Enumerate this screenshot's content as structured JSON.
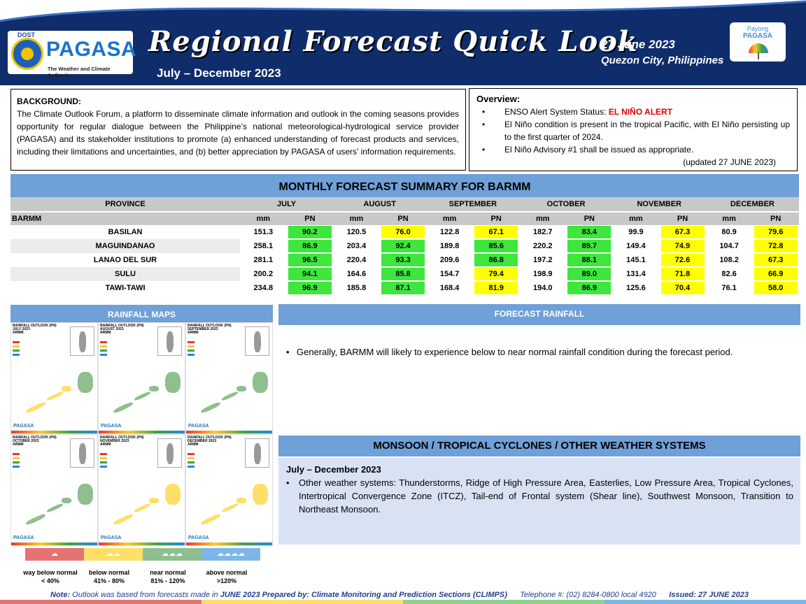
{
  "header": {
    "org_top": "DOST",
    "org_name": "PAGASA",
    "org_tagline": "The Weather and Climate Authority",
    "title": "Regional Forecast Quick Look",
    "period": "July – December 2023",
    "date": "27 June 2023",
    "place": "Quezon City, Philippines",
    "payong_line1": "Payong",
    "payong_line2": "PAGASA"
  },
  "background": {
    "heading": "BACKGROUND:",
    "text": "The Climate Outlook Forum, a platform to disseminate climate information and outlook in the coming seasons provides opportunity for regular dialogue between the Philippine’s national meteorological-hydrological service provider (PAGASA) and its stakeholder institutions to promote (a) enhanced understanding of forecast products and services, including their limitations and uncertainties, and (b) better appreciation by PAGASA of users’ information requirements."
  },
  "overview": {
    "heading": "Overview:",
    "item1_prefix": "ENSO Alert System Status: ",
    "item1_alert": "EL NIÑO ALERT",
    "item2": "El Niño condition is present in the tropical Pacific, with El Niño persisting up to the first quarter of 2024.",
    "item3": "El Niño Advisory #1 shall be issued as appropriate.",
    "updated": "(updated 27 JUNE 2023)"
  },
  "table": {
    "title": "MONTHLY FORECAST SUMMARY FOR BARMM",
    "province_header": "PROVINCE",
    "region": "BARMM",
    "months": [
      "JULY",
      "AUGUST",
      "SEPTEMBER",
      "OCTOBER",
      "NOVEMBER",
      "DECEMBER"
    ],
    "col_mm": "mm",
    "col_pn": "PN",
    "rows": [
      {
        "province": "BASILAN",
        "mm": [
          "151.3",
          "120.5",
          "122.8",
          "182.7",
          "99.9",
          "80.9"
        ],
        "pn": [
          "90.2",
          "76.0",
          "67.1",
          "83.4",
          "67.3",
          "79.6"
        ],
        "pn_color": [
          "#3ee63e",
          "#ffff00",
          "#ffff00",
          "#3ee63e",
          "#ffff00",
          "#ffff00"
        ]
      },
      {
        "province": "MAGUINDANAO",
        "mm": [
          "258.1",
          "203.4",
          "189.8",
          "220.2",
          "149.4",
          "104.7"
        ],
        "pn": [
          "86.9",
          "92.4",
          "85.6",
          "89.7",
          "74.9",
          "72.8"
        ],
        "pn_color": [
          "#3ee63e",
          "#3ee63e",
          "#3ee63e",
          "#3ee63e",
          "#ffff00",
          "#ffff00"
        ]
      },
      {
        "province": "LANAO DEL SUR",
        "mm": [
          "281.1",
          "220.4",
          "209.6",
          "197.2",
          "145.1",
          "108.2"
        ],
        "pn": [
          "96.5",
          "93.3",
          "86.8",
          "88.1",
          "72.6",
          "67.3"
        ],
        "pn_color": [
          "#3ee63e",
          "#3ee63e",
          "#3ee63e",
          "#3ee63e",
          "#ffff00",
          "#ffff00"
        ]
      },
      {
        "province": "SULU",
        "mm": [
          "200.2",
          "164.6",
          "154.7",
          "198.9",
          "131.4",
          "82.6"
        ],
        "pn": [
          "94.1",
          "85.8",
          "79.4",
          "89.0",
          "71.8",
          "66.9"
        ],
        "pn_color": [
          "#3ee63e",
          "#3ee63e",
          "#ffff00",
          "#3ee63e",
          "#ffff00",
          "#ffff00"
        ]
      },
      {
        "province": "TAWI-TAWI",
        "mm": [
          "234.8",
          "185.8",
          "168.4",
          "194.0",
          "125.6",
          "76.1"
        ],
        "pn": [
          "96.9",
          "87.1",
          "81.9",
          "86.9",
          "70.4",
          "58.0"
        ],
        "pn_color": [
          "#3ee63e",
          "#3ee63e",
          "#ffff00",
          "#3ee63e",
          "#ffff00",
          "#ffff00"
        ]
      }
    ]
  },
  "rainfall_maps": {
    "title": "RAINFALL MAPS",
    "maps": [
      {
        "t1": "RAINFALL OUTLOOK (PN)",
        "t2": "JULY 2023",
        "t3": "ARMM"
      },
      {
        "t1": "RAINFALL OUTLOOK (PN)",
        "t2": "AUGUST 2023",
        "t3": "ARMM"
      },
      {
        "t1": "RAINFALL OUTLOOK (PN)",
        "t2": "SEPTEMBER 2023",
        "t3": "ARMM"
      },
      {
        "t1": "RAINFALL OUTLOOK (PN)",
        "t2": "OCTOBER 2023",
        "t3": "ARMM"
      },
      {
        "t1": "RAINFALL OUTLOOK (PN)",
        "t2": "NOVEMBER 2023",
        "t3": "ARMM"
      },
      {
        "t1": "RAINFALL OUTLOOK (PN)",
        "t2": "DECEMBER 2023",
        "t3": "ARMM"
      }
    ],
    "legend": [
      {
        "label": "way below normal",
        "range": "< 40%",
        "color": "#e57373"
      },
      {
        "label": "below normal",
        "range": "41% - 80%",
        "color": "#ffe066"
      },
      {
        "label": "near normal",
        "range": "81% - 120%",
        "color": "#8fbf8f"
      },
      {
        "label": "above normal",
        "range": ">120%",
        "color": "#7fb6e8"
      }
    ]
  },
  "forecast": {
    "title": "FORECAST RAINFALL",
    "text": "Generally, BARMM will likely to experience below to near normal rainfall condition during the forecast period."
  },
  "monsoon": {
    "title": "MONSOON / TROPICAL CYCLONES / OTHER WEATHER SYSTEMS",
    "period": "July – December 2023",
    "text": "Other weather systems: Thunderstorms,  Ridge of High Pressure Area,  Easterlies, Low Pressure Area, Tropical Cyclones, Intertropical Convergence Zone (ITCZ), Tail-end of Frontal system (Shear line), Southwest Monsoon, Transition to Northeast Monsoon."
  },
  "footer": {
    "note_label": "Note:",
    "note_a": " Outlook was based from forecasts made in ",
    "note_month": "JUNE 2023",
    "note_prepared": "  Prepared by: Climate Monitoring and Prediction Sections (CLIMPS)",
    "telephone": "Telephone #:  (02) 8284-0800 local 4920",
    "issued": "Issued: 27 JUNE 2023"
  }
}
